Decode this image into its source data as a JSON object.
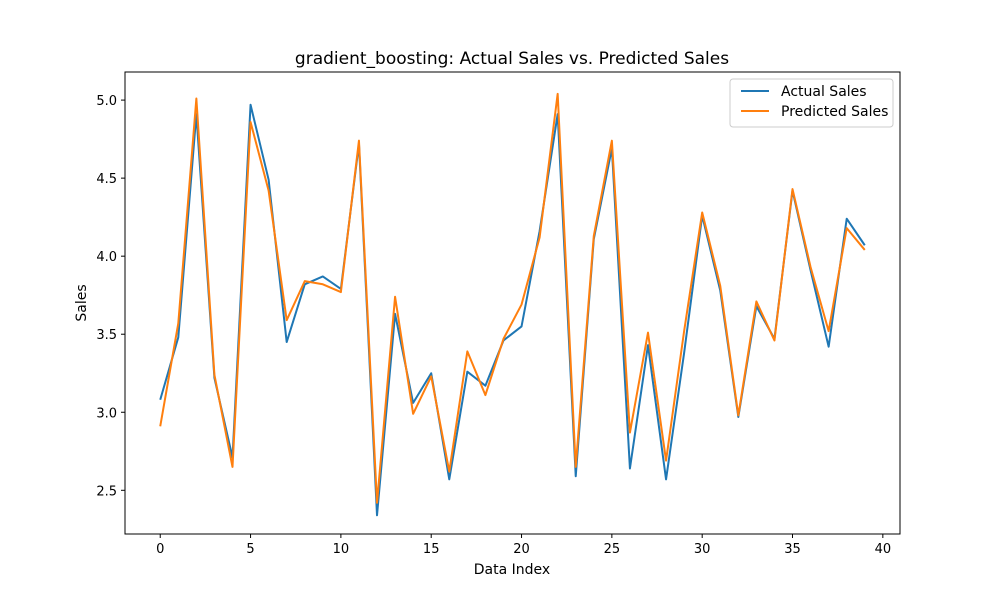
{
  "chart_data": {
    "type": "line",
    "title": "gradient_boosting: Actual Sales vs. Predicted Sales",
    "xlabel": "Data Index",
    "ylabel": "Sales",
    "xlim": [
      -1.95,
      40.95
    ],
    "ylim": [
      2.22,
      5.18
    ],
    "xticks": [
      0,
      5,
      10,
      15,
      20,
      25,
      30,
      35,
      40
    ],
    "yticks": [
      2.5,
      3.0,
      3.5,
      4.0,
      4.5,
      5.0
    ],
    "ytick_labels": [
      "2.5",
      "3.0",
      "3.5",
      "4.0",
      "4.5",
      "5.0"
    ],
    "grid": false,
    "legend_position": "top-right",
    "x": [
      0,
      1,
      2,
      3,
      4,
      5,
      6,
      7,
      8,
      9,
      10,
      11,
      12,
      13,
      14,
      15,
      16,
      17,
      18,
      19,
      20,
      21,
      22,
      23,
      24,
      25,
      26,
      27,
      28,
      29,
      30,
      31,
      32,
      33,
      34,
      35,
      36,
      37,
      38,
      39
    ],
    "series": [
      {
        "name": "Actual Sales",
        "color": "#1f77b4",
        "values": [
          3.08,
          3.48,
          4.91,
          3.22,
          2.71,
          4.97,
          4.49,
          3.45,
          3.82,
          3.87,
          3.79,
          4.72,
          2.34,
          3.63,
          3.06,
          3.25,
          2.57,
          3.26,
          3.17,
          3.46,
          3.55,
          4.16,
          4.91,
          2.59,
          4.11,
          4.69,
          2.64,
          3.43,
          2.57,
          3.38,
          4.26,
          3.78,
          2.97,
          3.68,
          3.47,
          4.42,
          3.91,
          3.42,
          4.24,
          4.07
        ]
      },
      {
        "name": "Predicted Sales",
        "color": "#ff7f0e",
        "values": [
          2.91,
          3.57,
          5.01,
          3.24,
          2.65,
          4.86,
          4.42,
          3.59,
          3.84,
          3.82,
          3.77,
          4.74,
          2.42,
          3.74,
          2.99,
          3.23,
          2.62,
          3.39,
          3.11,
          3.47,
          3.69,
          4.12,
          5.04,
          2.65,
          4.13,
          4.74,
          2.87,
          3.51,
          2.69,
          3.52,
          4.28,
          3.81,
          2.98,
          3.71,
          3.46,
          4.43,
          3.93,
          3.52,
          4.18,
          4.04
        ]
      }
    ]
  }
}
